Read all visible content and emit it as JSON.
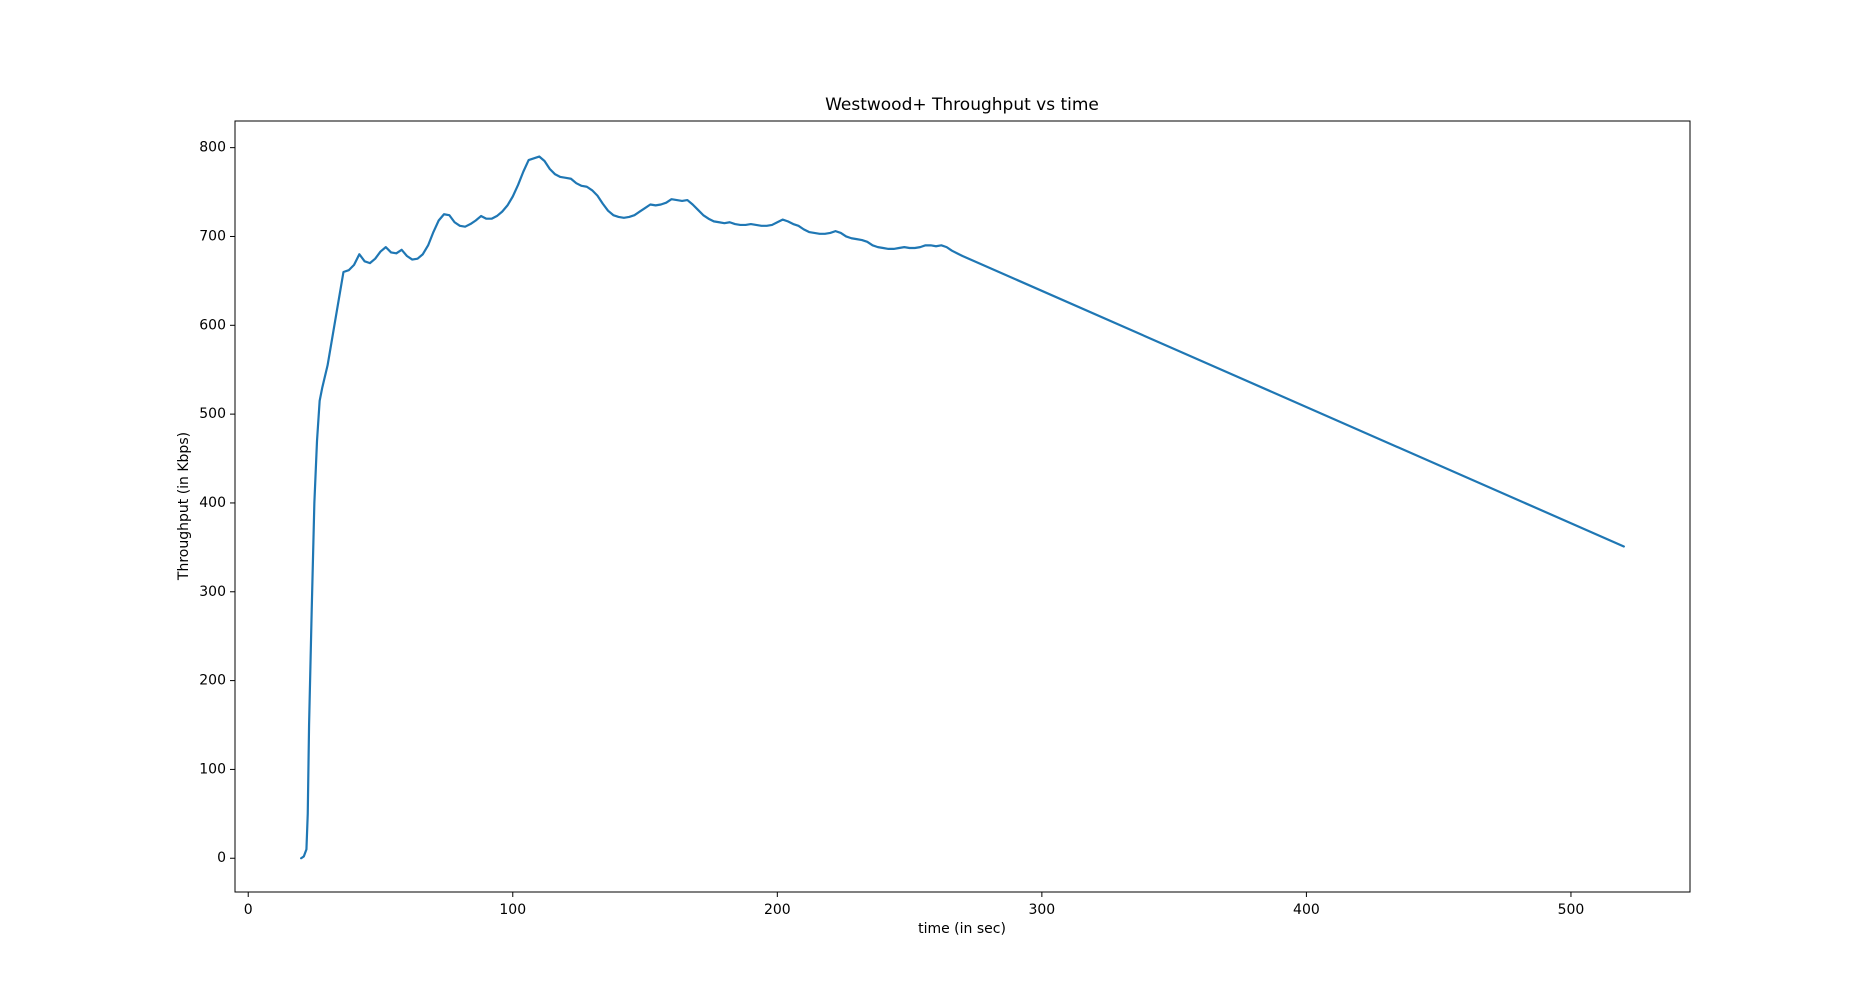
{
  "chart_data": {
    "type": "line",
    "title": "Westwood+ Throughput vs time",
    "x_label": "time (in sec)",
    "y_label": "Throughput (in Kbps)",
    "x": [
      20,
      21,
      22,
      22.5,
      23,
      24,
      25,
      26,
      27,
      28,
      30,
      32,
      34,
      36,
      38,
      40,
      42,
      44,
      46,
      48,
      50,
      52,
      54,
      56,
      58,
      60,
      62,
      64,
      66,
      68,
      70,
      72,
      74,
      76,
      78,
      80,
      82,
      84,
      86,
      88,
      90,
      92,
      94,
      96,
      98,
      100,
      102,
      104,
      106,
      108,
      110,
      112,
      114,
      116,
      118,
      120,
      122,
      124,
      126,
      128,
      130,
      132,
      134,
      136,
      138,
      140,
      142,
      144,
      146,
      148,
      150,
      152,
      154,
      156,
      158,
      160,
      162,
      164,
      166,
      168,
      170,
      172,
      174,
      176,
      178,
      180,
      182,
      184,
      186,
      188,
      190,
      192,
      194,
      196,
      198,
      200,
      202,
      204,
      206,
      208,
      210,
      212,
      214,
      216,
      218,
      220,
      222,
      224,
      226,
      228,
      230,
      232,
      234,
      236,
      238,
      240,
      242,
      244,
      246,
      248,
      250,
      252,
      254,
      256,
      258,
      260,
      262,
      264,
      266,
      268,
      270,
      520
    ],
    "series": [
      {
        "name": "Westwood+",
        "color": "#1f77b4",
        "values": [
          0,
          2,
          10,
          50,
          150,
          280,
          400,
          470,
          515,
          530,
          555,
          590,
          625,
          660,
          662,
          668,
          680,
          672,
          670,
          675,
          683,
          688,
          682,
          681,
          685,
          678,
          674,
          675,
          680,
          690,
          705,
          718,
          725,
          724,
          716,
          712,
          711,
          714,
          718,
          723,
          720,
          720,
          723,
          728,
          735,
          745,
          758,
          773,
          786,
          788,
          790,
          785,
          776,
          770,
          767,
          766,
          765,
          760,
          757,
          756,
          752,
          746,
          737,
          729,
          724,
          722,
          721,
          722,
          724,
          728,
          732,
          736,
          735,
          736,
          738,
          742,
          741,
          740,
          741,
          736,
          730,
          724,
          720,
          717,
          716,
          715,
          716,
          714,
          713,
          713,
          714,
          713,
          712,
          712,
          713,
          716,
          719,
          717,
          714,
          712,
          708,
          705,
          704,
          703,
          703,
          704,
          706,
          704,
          700,
          698,
          697,
          696,
          694,
          690,
          688,
          687,
          686,
          686,
          687,
          688,
          687,
          687,
          688,
          690,
          690,
          689,
          690,
          688,
          684,
          681,
          678,
          351
        ]
      }
    ],
    "xlim": [
      -5,
      545
    ],
    "ylim": [
      -38,
      830
    ],
    "xticks": [
      0,
      100,
      200,
      300,
      400,
      500
    ],
    "yticks": [
      0,
      100,
      200,
      300,
      400,
      500,
      600,
      700,
      800
    ],
    "grid": false
  }
}
